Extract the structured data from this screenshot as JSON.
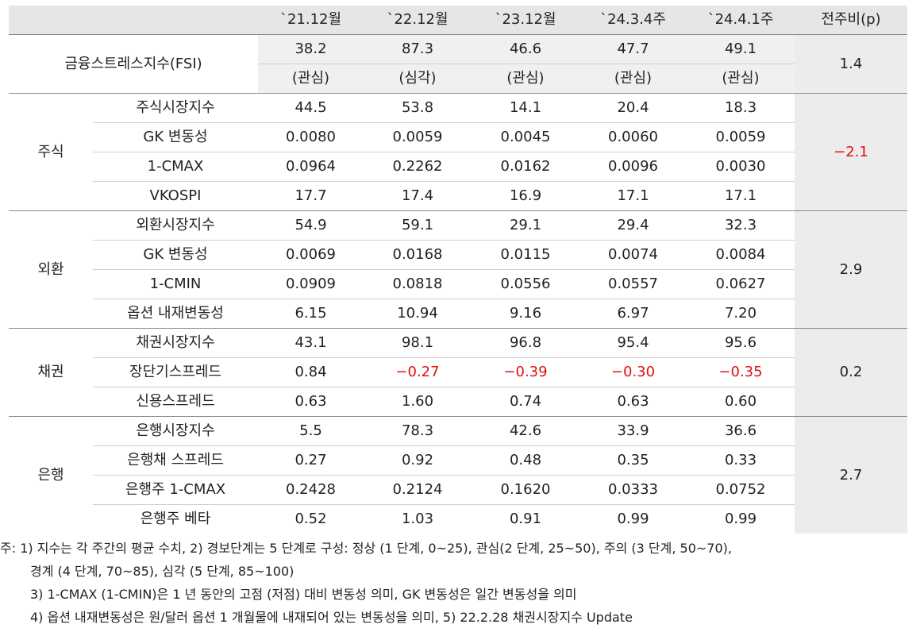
{
  "header": {
    "columns": [
      "`21.12월",
      "`22.12월",
      "`23.12월",
      "`24.3.4주",
      "`24.4.1주",
      "전주비(p)"
    ]
  },
  "fsi": {
    "label": "금융스트레스지수(FSI)",
    "values": [
      "38.2",
      "87.3",
      "46.6",
      "47.7",
      "49.1"
    ],
    "levels": [
      "(관심)",
      "(심각)",
      "(관심)",
      "(관심)",
      "(관심)"
    ],
    "diff": "1.4"
  },
  "groups": [
    {
      "name": "주식",
      "diff": "-2.1",
      "diff_negative": true,
      "rows": [
        {
          "label": "주식시장지수",
          "values": [
            "44.5",
            "53.8",
            "14.1",
            "20.4",
            "18.3"
          ]
        },
        {
          "label": "GK 변동성",
          "values": [
            "0.0080",
            "0.0059",
            "0.0045",
            "0.0060",
            "0.0059"
          ]
        },
        {
          "label": "1-CMAX",
          "values": [
            "0.0964",
            "0.2262",
            "0.0162",
            "0.0096",
            "0.0030"
          ]
        },
        {
          "label": "VKOSPI",
          "values": [
            "17.7",
            "17.4",
            "16.9",
            "17.1",
            "17.1"
          ]
        }
      ]
    },
    {
      "name": "외환",
      "diff": "2.9",
      "diff_negative": false,
      "rows": [
        {
          "label": "외환시장지수",
          "values": [
            "54.9",
            "59.1",
            "29.1",
            "29.4",
            "32.3"
          ]
        },
        {
          "label": "GK 변동성",
          "values": [
            "0.0069",
            "0.0168",
            "0.0115",
            "0.0074",
            "0.0084"
          ]
        },
        {
          "label": "1-CMIN",
          "values": [
            "0.0909",
            "0.0818",
            "0.0556",
            "0.0557",
            "0.0627"
          ]
        },
        {
          "label": "옵션 내재변동성",
          "values": [
            "6.15",
            "10.94",
            "9.16",
            "6.97",
            "7.20"
          ]
        }
      ]
    },
    {
      "name": "채권",
      "diff": "0.2",
      "diff_negative": false,
      "rows": [
        {
          "label": "채권시장지수",
          "values": [
            "43.1",
            "98.1",
            "96.8",
            "95.4",
            "95.6"
          ]
        },
        {
          "label": "장단기스프레드",
          "values": [
            "0.84",
            "-0.27",
            "-0.39",
            "-0.30",
            "-0.35"
          ]
        },
        {
          "label": "신용스프레드",
          "values": [
            "0.63",
            "1.60",
            "0.74",
            "0.63",
            "0.60"
          ]
        }
      ]
    },
    {
      "name": "은행",
      "diff": "2.7",
      "diff_negative": false,
      "rows": [
        {
          "label": "은행시장지수",
          "values": [
            "5.5",
            "78.3",
            "42.6",
            "33.9",
            "36.6"
          ]
        },
        {
          "label": "은행채 스프레드",
          "values": [
            "0.27",
            "0.92",
            "0.48",
            "0.35",
            "0.33"
          ]
        },
        {
          "label": "은행주 1-CMAX",
          "values": [
            "0.2428",
            "0.2124",
            "0.1620",
            "0.0333",
            "0.0752"
          ]
        },
        {
          "label": "은행주 베타",
          "values": [
            "0.52",
            "1.03",
            "0.91",
            "0.99",
            "0.99"
          ]
        }
      ]
    }
  ],
  "notes": [
    "주: 1) 지수는 각 주간의 평균 수치, 2) 경보단계는 5 단계로 구성: 정상 (1 단계, 0~25), 관심(2 단계, 25~50), 주의 (3 단계, 50~70),",
    "경계 (4 단계, 70~85), 심각 (5 단계, 85~100)",
    "3) 1-CMAX (1-CMIN)은 1 년 동안의 고점 (저점) 대비 변동성 의미, GK 변동성은 일간 변동성을 의미",
    "4) 옵션 내재변동성은 원/달러 옵션 1 개월물에 내재되어 있는 변동성을 의미, 5) 22.2.28 채권시장지수 Update"
  ]
}
